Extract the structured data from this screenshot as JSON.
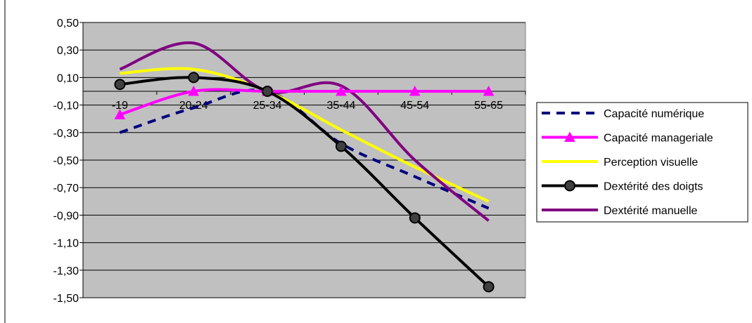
{
  "chart_data": {
    "type": "line",
    "title": "",
    "xlabel": "",
    "ylabel": "",
    "categories": [
      "-19",
      "20-24",
      "25-34",
      "35-44",
      "45-54",
      "55-65"
    ],
    "y_ticks": [
      "0,50",
      "0,30",
      "0,10",
      "-0,10",
      "-0,30",
      "-0,50",
      "-0,70",
      "-0,90",
      "-1,10",
      "-1,30",
      "-1,50"
    ],
    "ylim": [
      -1.5,
      0.5
    ],
    "grid": true,
    "legend_position": "right",
    "plot_background": "#c0c0c0",
    "series": [
      {
        "name": "Capacité numérique",
        "color": "#000080",
        "style": "dashed",
        "marker": "none",
        "values": [
          -0.3,
          -0.12,
          0.0,
          -0.38,
          -0.62,
          -0.85
        ]
      },
      {
        "name": "Capacité manageriale",
        "color": "#ff00ff",
        "style": "solid",
        "marker": "triangle",
        "values": [
          -0.17,
          0.0,
          0.0,
          0.0,
          0.0,
          0.0
        ]
      },
      {
        "name": "Perception visuelle",
        "color": "#ffff00",
        "style": "solid",
        "marker": "none",
        "values": [
          0.13,
          0.16,
          0.0,
          -0.28,
          -0.55,
          -0.8
        ]
      },
      {
        "name": "Dextérité des doigts",
        "color": "#000000",
        "style": "solid",
        "marker": "circle",
        "values": [
          0.05,
          0.1,
          0.0,
          -0.4,
          -0.92,
          -1.42
        ]
      },
      {
        "name": "Dextérité manuelle",
        "color": "#800080",
        "style": "solid",
        "marker": "none",
        "values": [
          0.16,
          0.35,
          0.0,
          0.04,
          -0.5,
          -0.94
        ]
      }
    ]
  }
}
